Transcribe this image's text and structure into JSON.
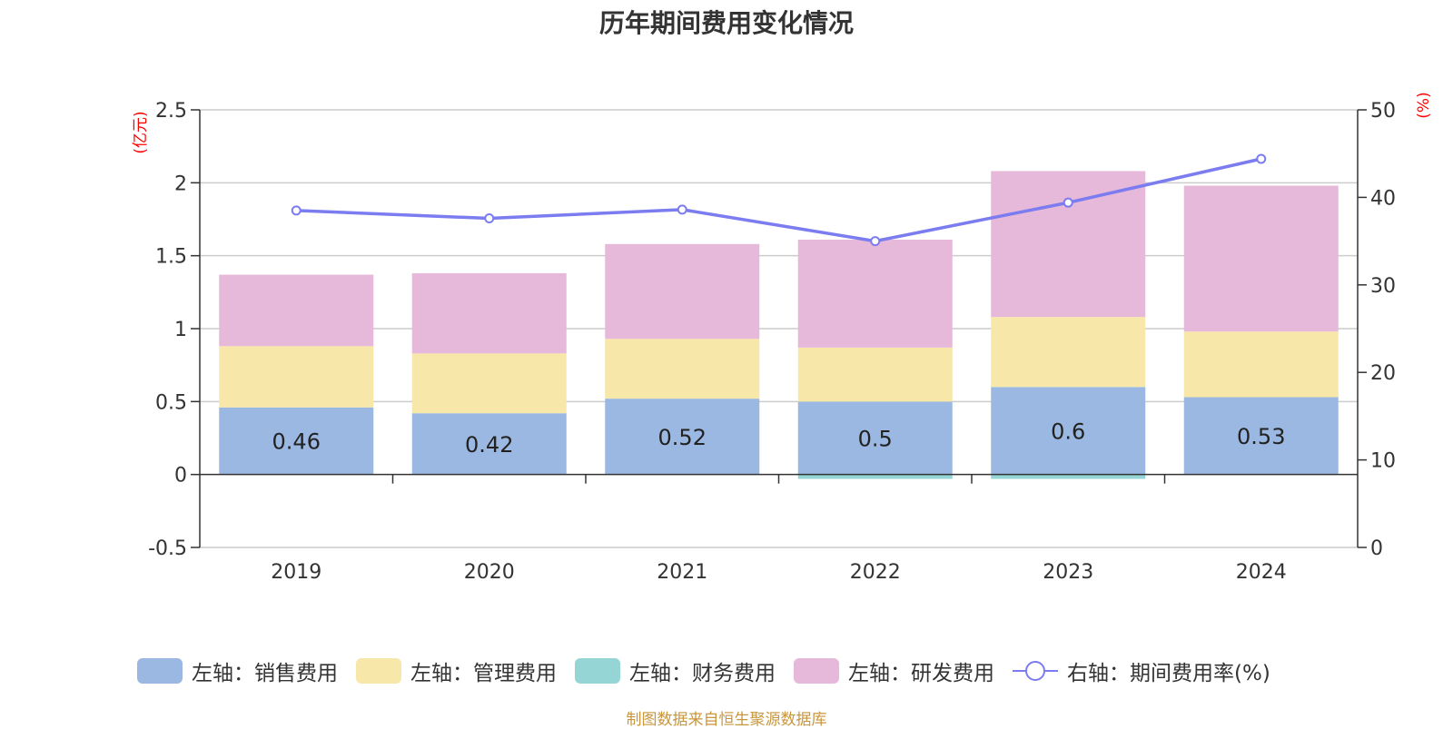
{
  "title": "历年期间费用变化情况",
  "source": "制图数据来自恒生聚源数据库",
  "chart_data": {
    "type": "bar",
    "stacked": true,
    "categories": [
      "2019",
      "2020",
      "2021",
      "2022",
      "2023",
      "2024"
    ],
    "series": [
      {
        "name": "左轴：销售费用",
        "axis": "left",
        "color": "#9bb8e2",
        "values": [
          0.46,
          0.42,
          0.52,
          0.5,
          0.6,
          0.53
        ]
      },
      {
        "name": "左轴：管理费用",
        "axis": "left",
        "color": "#f7e7a8",
        "values": [
          0.42,
          0.41,
          0.41,
          0.37,
          0.48,
          0.45
        ]
      },
      {
        "name": "左轴：财务费用",
        "axis": "left",
        "color": "#96d5d5",
        "values": [
          0.0,
          0.0,
          0.0,
          -0.03,
          -0.03,
          0.0
        ]
      },
      {
        "name": "左轴：研发费用",
        "axis": "left",
        "color": "#e6b8d9",
        "values": [
          0.49,
          0.55,
          0.65,
          0.74,
          1.0,
          1.0
        ]
      },
      {
        "name": "右轴：期间费用率(%)",
        "axis": "right",
        "type": "line",
        "color": "#7b7cf0",
        "values": [
          38.5,
          37.6,
          38.6,
          35.0,
          39.4,
          44.4
        ]
      }
    ],
    "bar_labels": [
      "0.46",
      "0.42",
      "0.52",
      "0.5",
      "0.6",
      "0.53"
    ],
    "left_axis": {
      "unit": "(亿元)",
      "ylim": [
        -0.5,
        2.5
      ],
      "ticks": [
        -0.5,
        0,
        0.5,
        1,
        1.5,
        2,
        2.5
      ],
      "tick_labels": [
        "-0.5",
        "0",
        "0.5",
        "1",
        "1.5",
        "2",
        "2.5"
      ]
    },
    "right_axis": {
      "unit": "(%)",
      "ylim": [
        0,
        50
      ],
      "ticks": [
        0,
        10,
        20,
        30,
        40,
        50
      ],
      "tick_labels": [
        "0",
        "10",
        "20",
        "30",
        "40",
        "50"
      ]
    },
    "grid": true,
    "legend_position": "bottom"
  }
}
